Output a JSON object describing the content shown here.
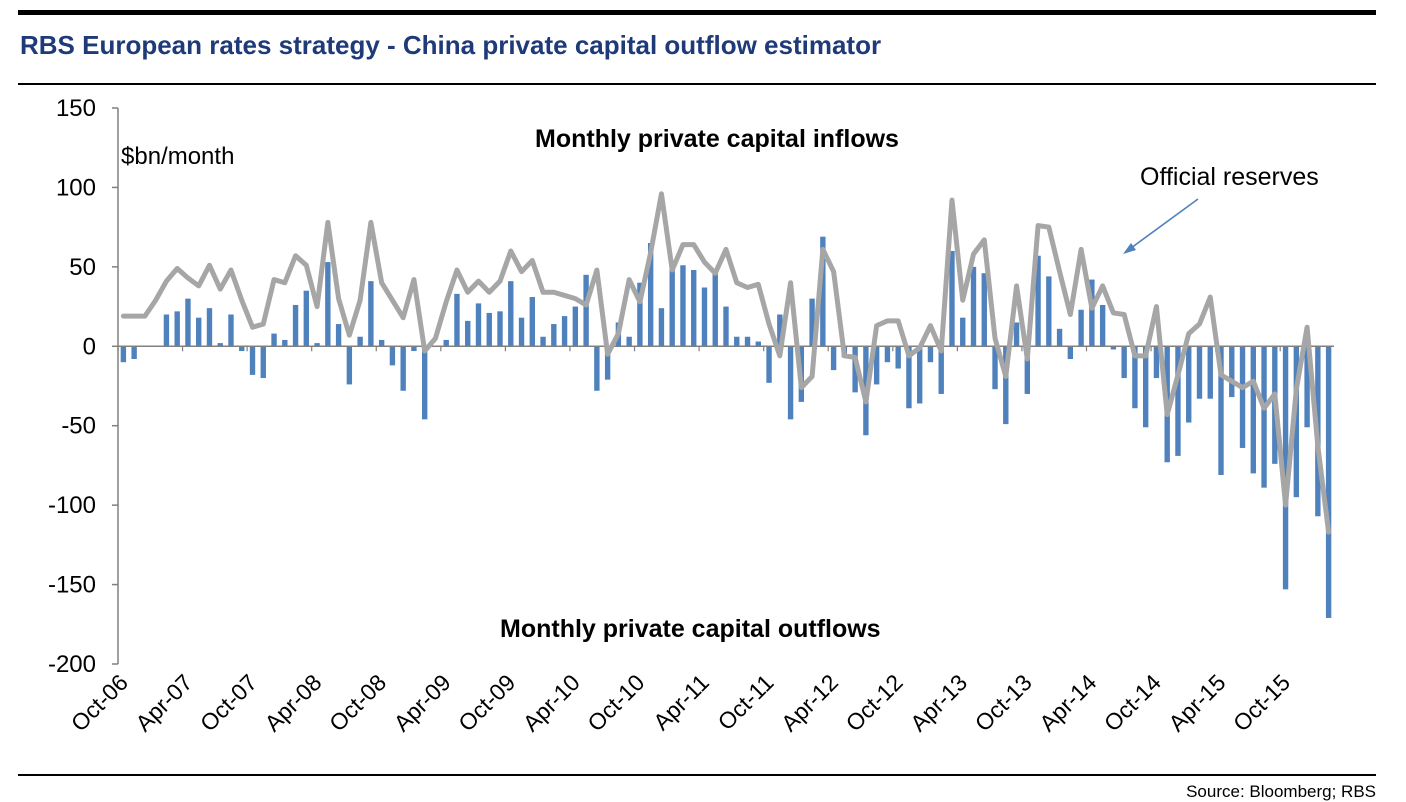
{
  "header": {
    "title": "RBS European rates strategy - China private capital outflow estimator"
  },
  "footer": {
    "source": "Source:  Bloomberg; RBS"
  },
  "colors": {
    "title": "#1f3a78",
    "bars": "#4f81bd",
    "line": "#a6a6a6",
    "arrow": "#4f81bd"
  },
  "chart_data": {
    "type": "bar+line",
    "title": "RBS European rates strategy - China private capital outflow estimator",
    "ylabel": "$bn/month",
    "ylim": [
      -200,
      150
    ],
    "yticks": [
      "150",
      "100",
      "50",
      "0",
      "-50",
      "-100",
      "-150",
      "-200"
    ],
    "ytick_values": [
      150,
      100,
      50,
      0,
      -50,
      -100,
      -150,
      -200
    ],
    "start_month": "Oct-06",
    "xtick_labels": [
      "Oct-06",
      "Apr-07",
      "Oct-07",
      "Apr-08",
      "Oct-08",
      "Apr-09",
      "Oct-09",
      "Apr-10",
      "Oct-10",
      "Apr-11",
      "Oct-11",
      "Apr-12",
      "Oct-12",
      "Apr-13",
      "Oct-13",
      "Apr-14",
      "Oct-14",
      "Apr-15",
      "Oct-15"
    ],
    "annotations": {
      "inflows": "Monthly private capital inflows",
      "outflows": "Monthly private capital outflows",
      "reserves": "Official reserves"
    },
    "series": [
      {
        "name": "Monthly private capital flows",
        "kind": "bar",
        "values": [
          -10,
          -8,
          0,
          0,
          20,
          22,
          30,
          18,
          24,
          2,
          20,
          -3,
          -18,
          -20,
          8,
          4,
          26,
          35,
          2,
          53,
          14,
          -24,
          6,
          41,
          4,
          -12,
          -28,
          -3,
          -46,
          0,
          4,
          33,
          16,
          27,
          21,
          22,
          41,
          18,
          31,
          6,
          14,
          19,
          25,
          45,
          -28,
          -21,
          15,
          6,
          40,
          65,
          24,
          49,
          51,
          48,
          37,
          46,
          25,
          6,
          6,
          3,
          -23,
          20,
          -46,
          -35,
          30,
          69,
          -15,
          -7,
          -29,
          -56,
          -24,
          -10,
          -14,
          -39,
          -36,
          -10,
          -30,
          60,
          18,
          50,
          46,
          -27,
          -49,
          15,
          -30,
          57,
          44,
          11,
          -8,
          23,
          42,
          26,
          -2,
          -20,
          -39,
          -51,
          -20,
          -73,
          -69,
          -48,
          -33,
          -33,
          -81,
          -32,
          -64,
          -80,
          -89,
          -74,
          -153,
          -95,
          -51,
          -107,
          -171
        ]
      },
      {
        "name": "Official reserves",
        "kind": "line",
        "values": [
          19,
          19,
          19,
          29,
          41,
          49,
          43,
          38,
          51,
          36,
          48,
          29,
          12,
          14,
          42,
          40,
          57,
          51,
          25,
          78,
          30,
          7,
          29,
          78,
          40,
          29,
          18,
          42,
          -3,
          5,
          28,
          48,
          34,
          41,
          34,
          41,
          60,
          47,
          54,
          34,
          34,
          32,
          30,
          26,
          48,
          -5,
          8,
          42,
          28,
          59,
          96,
          48,
          64,
          64,
          53,
          46,
          61,
          40,
          37,
          39,
          14,
          -6,
          40,
          -26,
          -19,
          61,
          47,
          -6,
          -7,
          -35,
          13,
          16,
          16,
          -6,
          -1,
          13,
          -3,
          92,
          29,
          58,
          67,
          5,
          -19,
          38,
          -8,
          76,
          75,
          47,
          20,
          61,
          24,
          38,
          21,
          20,
          -6,
          -6,
          25,
          -43,
          -18,
          8,
          14,
          31,
          -18,
          -22,
          -26,
          -22,
          -39,
          -30,
          -100,
          -27,
          12,
          -63,
          -117
        ]
      }
    ],
    "legend": "none",
    "grid": false
  }
}
